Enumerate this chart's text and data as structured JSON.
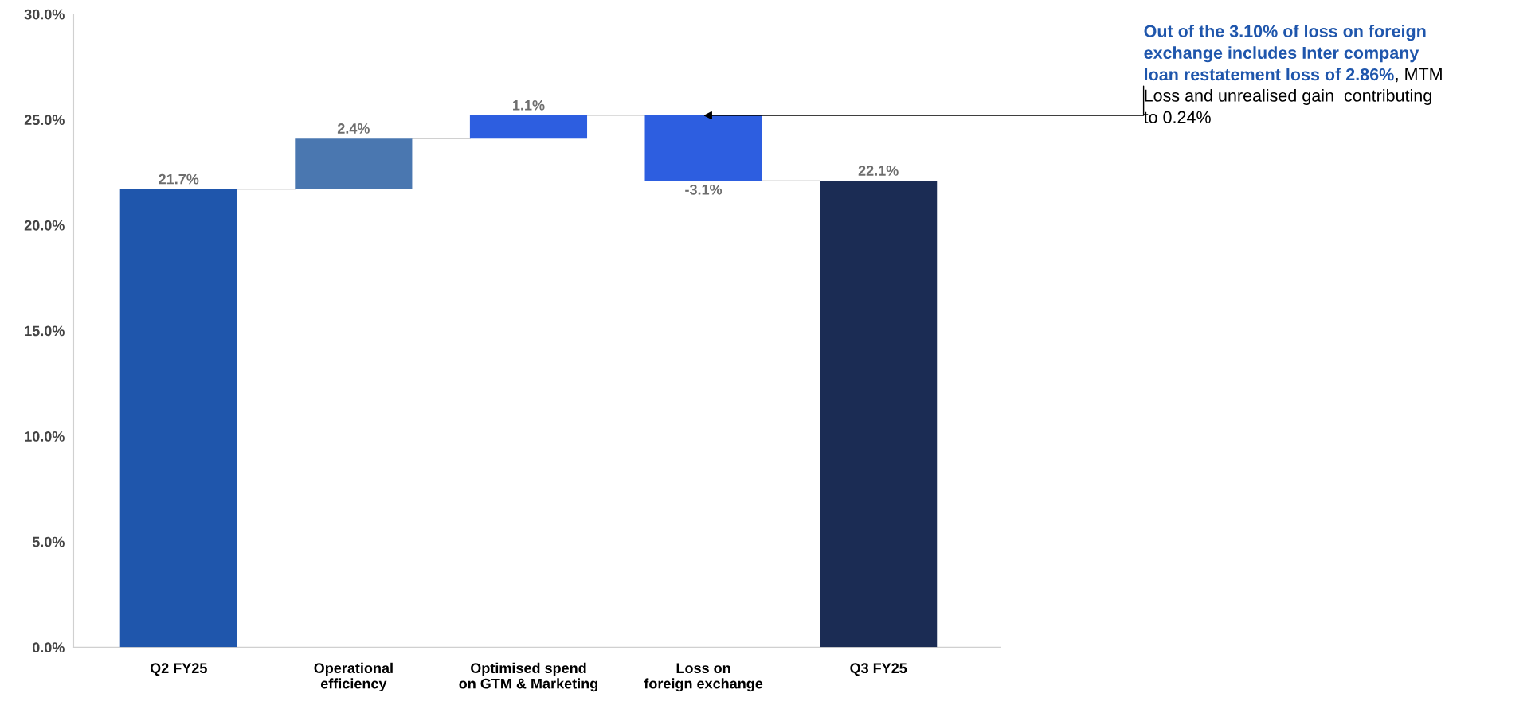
{
  "chart_data": {
    "type": "bar",
    "categories": [
      "Q2 FY25",
      "Operational\nefficiency",
      "Optimised spend\non GTM & Marketing",
      "Loss on\nforeign exchange",
      "Q3 FY25"
    ],
    "values": [
      21.7,
      2.4,
      1.1,
      -3.1,
      22.1
    ],
    "base": [
      0,
      21.7,
      24.1,
      25.2,
      0
    ],
    "colors": [
      "#1f56ac",
      "#4a77b0",
      "#2d5ee0",
      "#2d5ee0",
      "#1b2c54"
    ],
    "value_labels": [
      "21.7%",
      "2.4%",
      "1.1%",
      "-3.1%",
      "22.1%"
    ],
    "ylim": [
      0,
      30
    ],
    "yticks": [
      {
        "value": 0,
        "label": "0.0%"
      },
      {
        "value": 5,
        "label": "5.0%"
      },
      {
        "value": 10,
        "label": "10.0%"
      },
      {
        "value": 15,
        "label": "15.0%"
      },
      {
        "value": 20,
        "label": "20.0%"
      },
      {
        "value": 25,
        "label": "25.0%"
      },
      {
        "value": 30,
        "label": "30.0%"
      }
    ],
    "grid": false,
    "annotations": [
      {
        "text": "Out of the 3.10% of loss on foreign\nexchange includes Inter company\nloan restatement loss of 2.86%",
        "x": "Loss on\nforeign exchange",
        "y": 25.2
      },
      ", MTM\nLoss and unrealised gain  contributing\nto 0.24%"
    ]
  }
}
